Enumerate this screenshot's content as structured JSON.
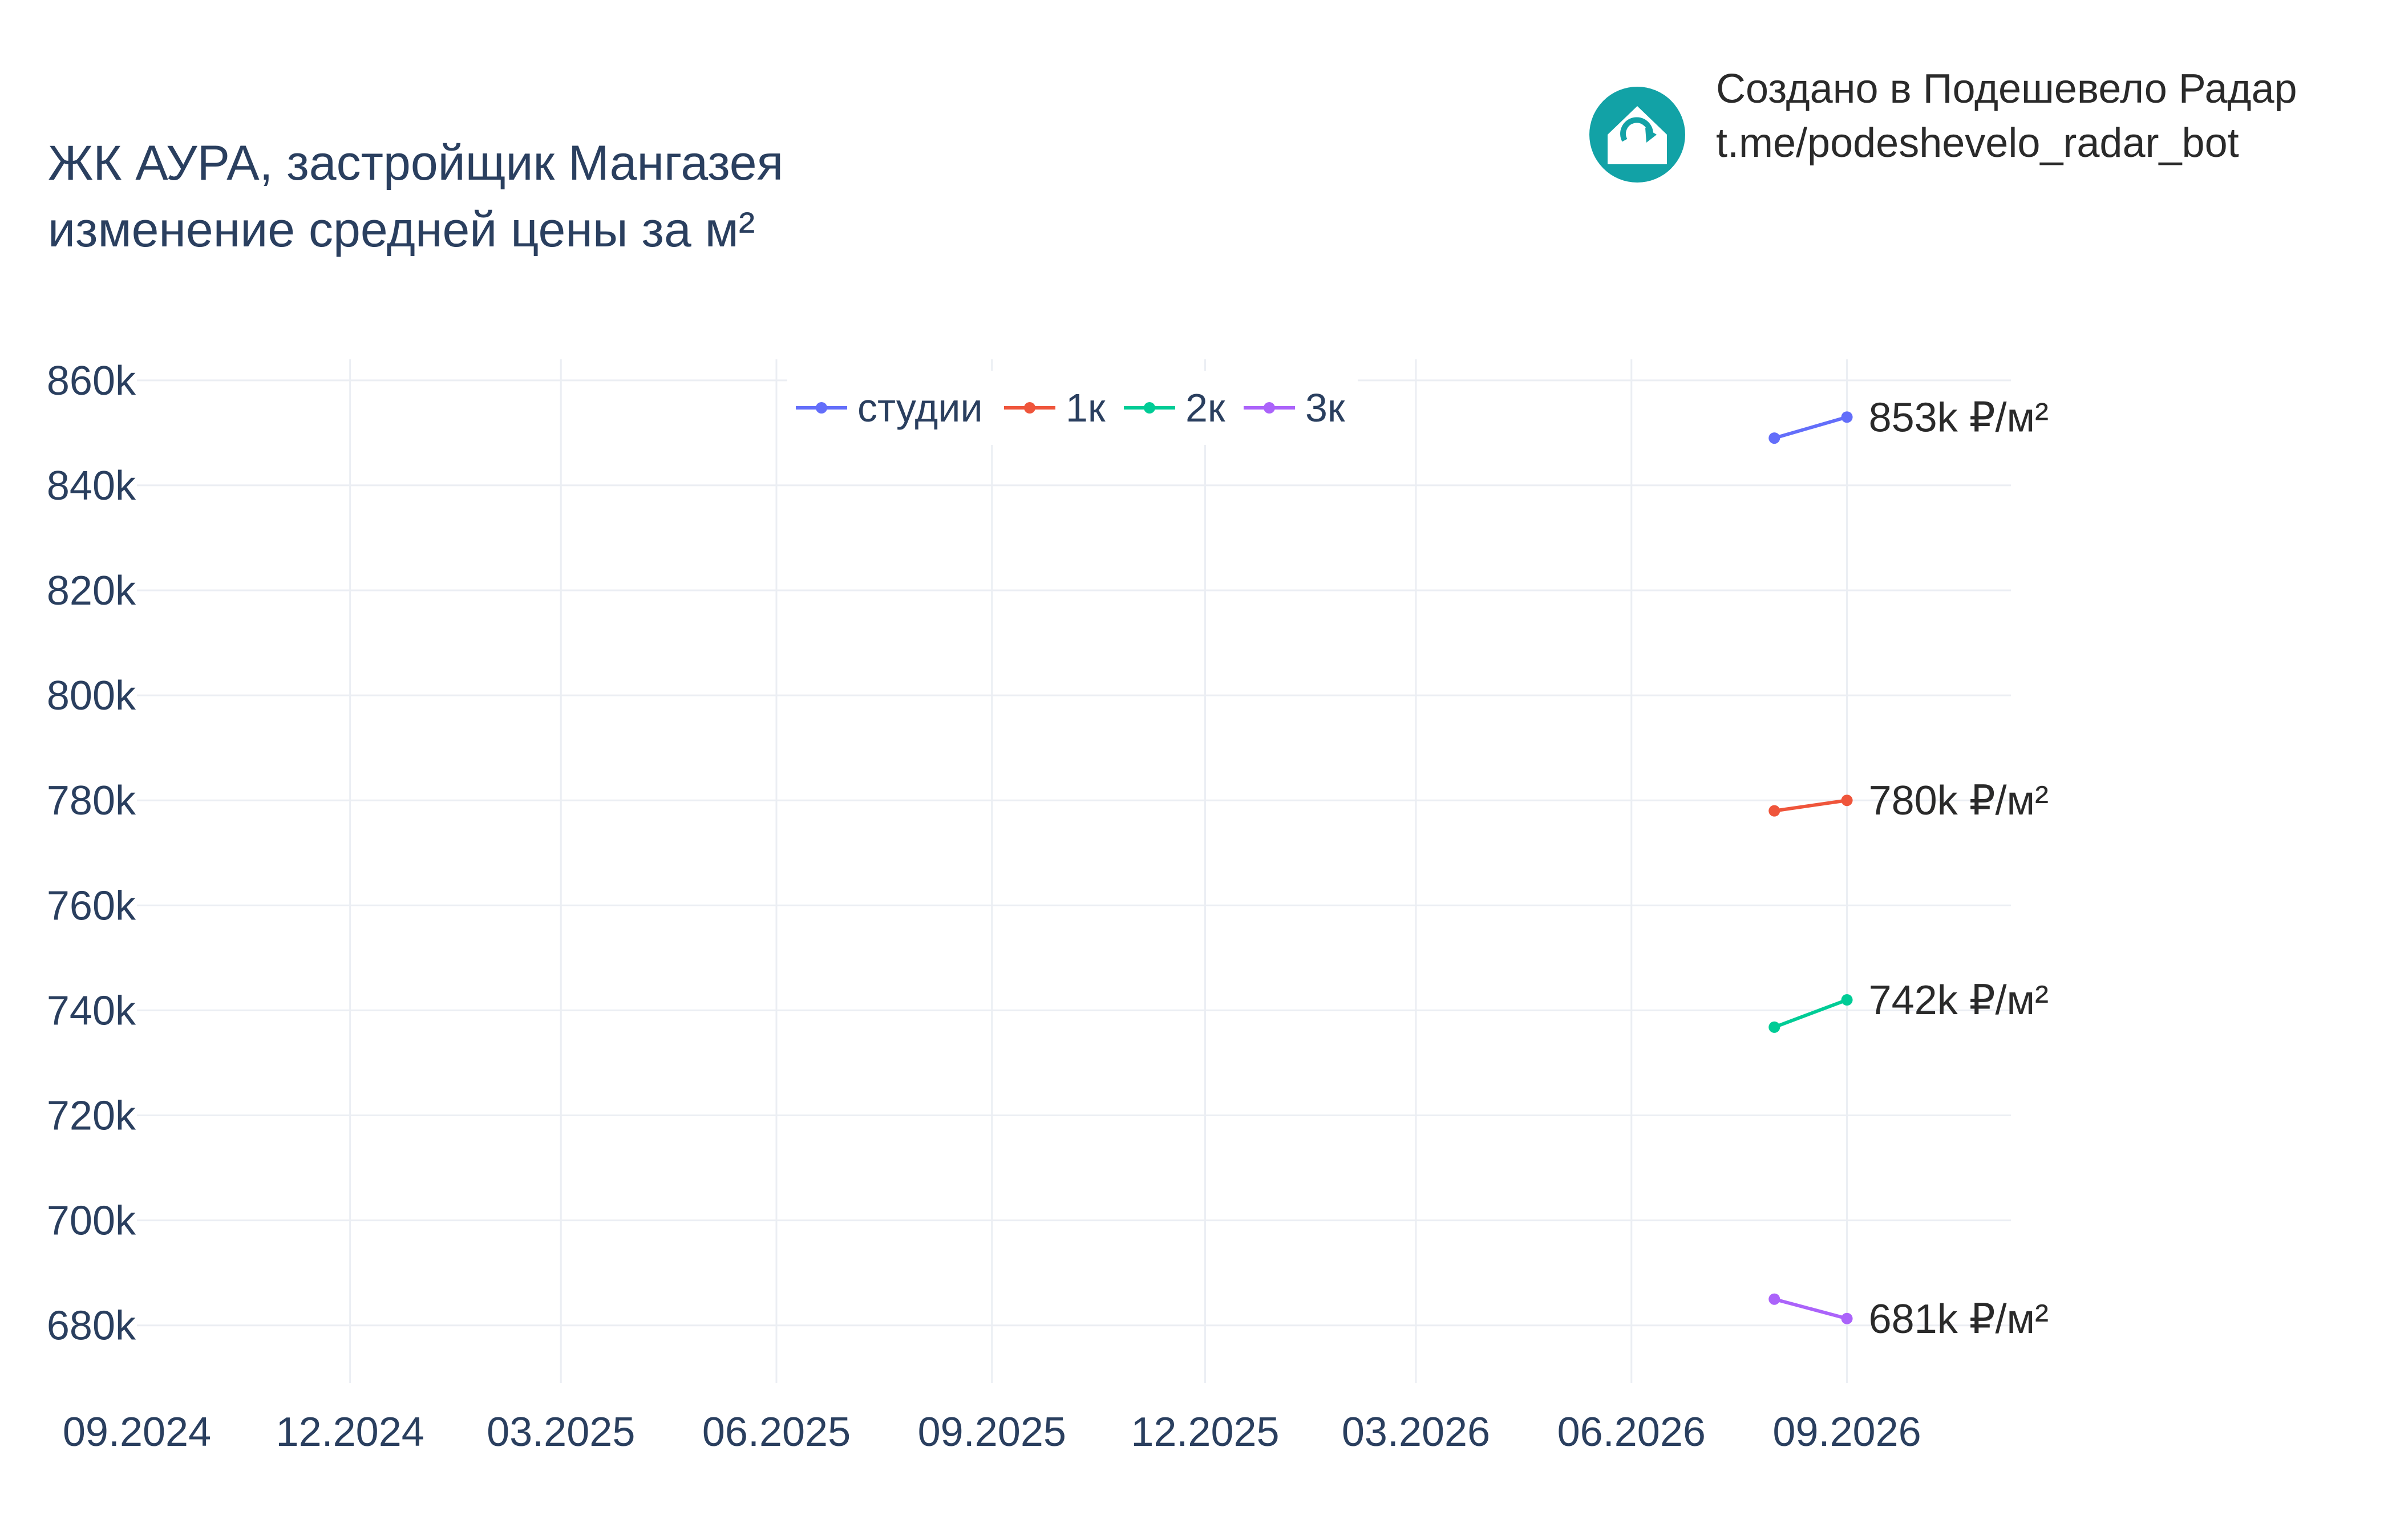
{
  "title_lines": [
    "ЖК АУРА, застройщик Мангазея",
    "изменение средней цены за м²"
  ],
  "credit": {
    "line1": "Создано в Подешевело Радар",
    "line2": "t.me/podeshevelo_radar_bot",
    "icon": "house-refresh-icon",
    "icon_color": "#12a2a6"
  },
  "chart_data": {
    "type": "line",
    "title": "ЖК АУРА, застройщик Мангазея изменение средней цены за м²",
    "xlabel": "",
    "ylabel": "",
    "x_ticks": [
      "09.2024",
      "12.2024",
      "03.2025",
      "06.2025",
      "09.2025",
      "12.2025",
      "03.2026",
      "06.2026",
      "09.2026"
    ],
    "x_range": [
      "2024-09-01",
      "2026-11-10"
    ],
    "y_ticks": [
      "680k",
      "700k",
      "720k",
      "740k",
      "760k",
      "780k",
      "800k",
      "820k",
      "840k",
      "860k"
    ],
    "ylim": [
      669000,
      864000
    ],
    "grid": true,
    "legend_position": "top-center",
    "series": [
      {
        "name": "студии",
        "color": "#636efa",
        "x": [
          "2026-08-01",
          "2026-09-01"
        ],
        "y": [
          849000,
          853000
        ],
        "end_label": "853k ₽/м²"
      },
      {
        "name": "1к",
        "color": "#ef553b",
        "x": [
          "2026-08-01",
          "2026-09-01"
        ],
        "y": [
          778000,
          780000
        ],
        "end_label": "780k ₽/м²"
      },
      {
        "name": "2к",
        "color": "#00cc96",
        "x": [
          "2026-08-01",
          "2026-09-01"
        ],
        "y": [
          736800,
          742000
        ],
        "end_label": "742k ₽/м²"
      },
      {
        "name": "3к",
        "color": "#ab63fa",
        "x": [
          "2026-08-01",
          "2026-09-01"
        ],
        "y": [
          685000,
          681300
        ],
        "end_label": "681k ₽/м²"
      }
    ]
  }
}
